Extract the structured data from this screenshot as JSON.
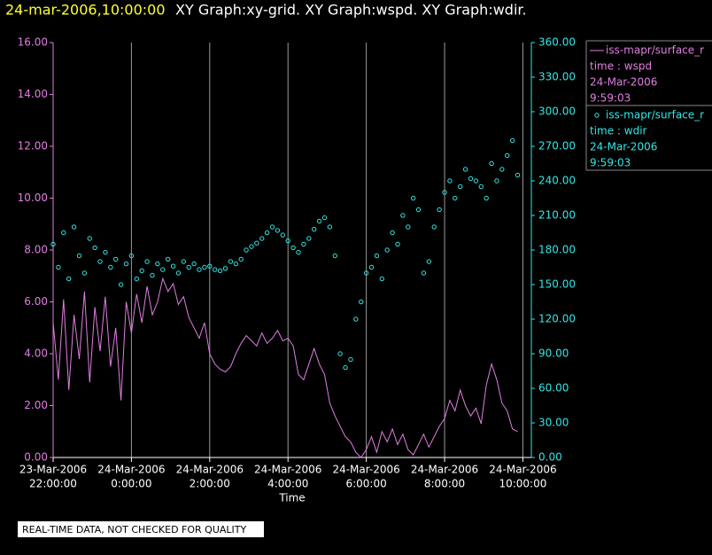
{
  "chart_data": {
    "type": "xy",
    "title": [
      "24-mar-2006,10:00:00",
      "XY Graph:xy-grid.  XY Graph:wspd.  XY Graph:wdir."
    ],
    "xlabel": "Time",
    "note": "REAL-TIME DATA, NOT CHECKED FOR QUALITY",
    "x": [
      "2006-03-23T22:00",
      "2006-03-23T22:08",
      "2006-03-23T22:16",
      "2006-03-23T22:24",
      "2006-03-23T22:32",
      "2006-03-23T22:40",
      "2006-03-23T22:48",
      "2006-03-23T22:56",
      "2006-03-23T23:04",
      "2006-03-23T23:12",
      "2006-03-23T23:20",
      "2006-03-23T23:28",
      "2006-03-23T23:36",
      "2006-03-23T23:44",
      "2006-03-23T23:52",
      "2006-03-24T00:00",
      "2006-03-24T00:08",
      "2006-03-24T00:16",
      "2006-03-24T00:24",
      "2006-03-24T00:32",
      "2006-03-24T00:40",
      "2006-03-24T00:48",
      "2006-03-24T00:56",
      "2006-03-24T01:04",
      "2006-03-24T01:12",
      "2006-03-24T01:20",
      "2006-03-24T01:28",
      "2006-03-24T01:36",
      "2006-03-24T01:44",
      "2006-03-24T01:52",
      "2006-03-24T02:00",
      "2006-03-24T02:08",
      "2006-03-24T02:16",
      "2006-03-24T02:24",
      "2006-03-24T02:32",
      "2006-03-24T02:40",
      "2006-03-24T02:48",
      "2006-03-24T02:56",
      "2006-03-24T03:04",
      "2006-03-24T03:12",
      "2006-03-24T03:20",
      "2006-03-24T03:28",
      "2006-03-24T03:36",
      "2006-03-24T03:44",
      "2006-03-24T03:52",
      "2006-03-24T04:00",
      "2006-03-24T04:08",
      "2006-03-24T04:16",
      "2006-03-24T04:24",
      "2006-03-24T04:32",
      "2006-03-24T04:40",
      "2006-03-24T04:48",
      "2006-03-24T04:56",
      "2006-03-24T05:04",
      "2006-03-24T05:12",
      "2006-03-24T05:20",
      "2006-03-24T05:28",
      "2006-03-24T05:36",
      "2006-03-24T05:44",
      "2006-03-24T05:52",
      "2006-03-24T06:00",
      "2006-03-24T06:08",
      "2006-03-24T06:16",
      "2006-03-24T06:24",
      "2006-03-24T06:32",
      "2006-03-24T06:40",
      "2006-03-24T06:48",
      "2006-03-24T06:56",
      "2006-03-24T07:04",
      "2006-03-24T07:12",
      "2006-03-24T07:20",
      "2006-03-24T07:28",
      "2006-03-24T07:36",
      "2006-03-24T07:44",
      "2006-03-24T07:52",
      "2006-03-24T08:00",
      "2006-03-24T08:08",
      "2006-03-24T08:16",
      "2006-03-24T08:24",
      "2006-03-24T08:32",
      "2006-03-24T08:40",
      "2006-03-24T08:48",
      "2006-03-24T08:56",
      "2006-03-24T09:04",
      "2006-03-24T09:12",
      "2006-03-24T09:20",
      "2006-03-24T09:28",
      "2006-03-24T09:36",
      "2006-03-24T09:44",
      "2006-03-24T09:52"
    ],
    "xlim": [
      "2006-03-23T22:00",
      "2006-03-24T10:13"
    ],
    "xticks": [
      {
        "value": "2006-03-23T22:00",
        "label": [
          "23-Mar-2006",
          "22:00:00"
        ]
      },
      {
        "value": "2006-03-24T00:00",
        "label": [
          "24-Mar-2006",
          "0:00:00"
        ]
      },
      {
        "value": "2006-03-24T02:00",
        "label": [
          "24-Mar-2006",
          "2:00:00"
        ]
      },
      {
        "value": "2006-03-24T04:00",
        "label": [
          "24-Mar-2006",
          "4:00:00"
        ]
      },
      {
        "value": "2006-03-24T06:00",
        "label": [
          "24-Mar-2006",
          "6:00:00"
        ]
      },
      {
        "value": "2006-03-24T08:00",
        "label": [
          "24-Mar-2006",
          "8:00:00"
        ]
      },
      {
        "value": "2006-03-24T10:00",
        "label": [
          "24-Mar-2006",
          "10:00:00"
        ]
      }
    ],
    "ylim": [
      0,
      16
    ],
    "yticks": [
      {
        "value": 0,
        "label": "0.00"
      },
      {
        "value": 2,
        "label": "2.00"
      },
      {
        "value": 4,
        "label": "4.00"
      },
      {
        "value": 6,
        "label": "6.00"
      },
      {
        "value": 8,
        "label": "8.00"
      },
      {
        "value": 10,
        "label": "10.00"
      },
      {
        "value": 12,
        "label": "12.00"
      },
      {
        "value": 14,
        "label": "14.00"
      },
      {
        "value": 16,
        "label": "16.00"
      }
    ],
    "y2lim": [
      0,
      360
    ],
    "y2ticks": [
      {
        "value": 0,
        "label": "0.00"
      },
      {
        "value": 30,
        "label": "30.00"
      },
      {
        "value": 60,
        "label": "60.00"
      },
      {
        "value": 90,
        "label": "90.00"
      },
      {
        "value": 120,
        "label": "120.00"
      },
      {
        "value": 150,
        "label": "150.00"
      },
      {
        "value": 180,
        "label": "180.00"
      },
      {
        "value": 210,
        "label": "210.00"
      },
      {
        "value": 240,
        "label": "240.00"
      },
      {
        "value": 270,
        "label": "270.00"
      },
      {
        "value": 300,
        "label": "300.00"
      },
      {
        "value": 330,
        "label": "330.00"
      },
      {
        "value": 360,
        "label": "360.00"
      }
    ],
    "grid": true,
    "series": [
      {
        "name": "iss-mapr/surface_r",
        "type": "line",
        "color": "#e07ee0",
        "detail": [
          "time : wspd",
          "24-Mar-2006",
          "9:59:03"
        ],
        "values": [
          5.2,
          3.0,
          6.1,
          2.6,
          5.5,
          3.8,
          6.4,
          2.9,
          5.8,
          4.1,
          6.2,
          3.5,
          5.0,
          2.2,
          6.0,
          4.8,
          6.3,
          5.2,
          6.6,
          5.5,
          6.0,
          6.9,
          6.4,
          6.7,
          5.9,
          6.2,
          5.4,
          5.0,
          4.6,
          5.2,
          4.0,
          3.6,
          3.4,
          3.3,
          3.5,
          4.0,
          4.4,
          4.7,
          4.5,
          4.3,
          4.8,
          4.4,
          4.6,
          4.9,
          4.5,
          4.6,
          4.3,
          3.2,
          3.0,
          3.6,
          4.2,
          3.6,
          3.2,
          2.1,
          1.6,
          1.2,
          0.8,
          0.6,
          0.2,
          0.0,
          0.3,
          0.8,
          0.2,
          1.0,
          0.6,
          1.1,
          0.5,
          0.9,
          0.3,
          0.1,
          0.5,
          0.9,
          0.4,
          0.8,
          1.2,
          1.5,
          2.2,
          1.8,
          2.6,
          2.0,
          1.6,
          1.9,
          1.3,
          2.8,
          3.6,
          3.0,
          2.1,
          1.8,
          1.1,
          1.0
        ]
      },
      {
        "name": "iss-mapr/surface_r",
        "type": "scatter",
        "axis": "y2",
        "color": "#33e6e6",
        "detail": [
          "time : wdir",
          "24-Mar-2006",
          "9:59:03"
        ],
        "values": [
          185,
          165,
          195,
          155,
          200,
          175,
          160,
          190,
          182,
          170,
          178,
          165,
          172,
          150,
          168,
          175,
          155,
          162,
          170,
          158,
          168,
          163,
          172,
          166,
          160,
          170,
          165,
          168,
          163,
          165,
          166,
          163,
          162,
          164,
          170,
          168,
          172,
          180,
          183,
          186,
          190,
          195,
          200,
          197,
          193,
          188,
          182,
          178,
          185,
          190,
          198,
          205,
          208,
          200,
          175,
          90,
          78,
          85,
          120,
          135,
          160,
          165,
          175,
          155,
          180,
          195,
          185,
          210,
          200,
          225,
          215,
          160,
          170,
          200,
          215,
          230,
          240,
          225,
          235,
          250,
          242,
          240,
          235,
          225,
          255,
          240,
          250,
          262,
          275,
          245
        ]
      }
    ]
  }
}
